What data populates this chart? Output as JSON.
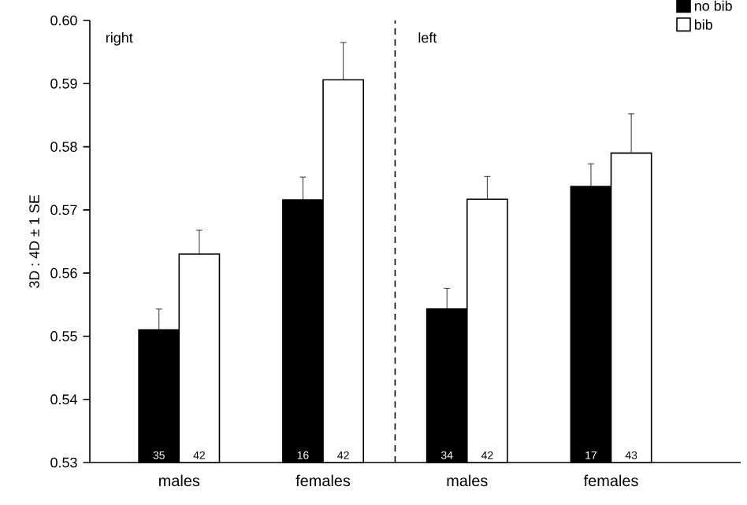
{
  "chart_data": {
    "type": "bar",
    "ylabel": "3D : 4D ± 1 SE",
    "categories": [
      "males",
      "females",
      "males",
      "females"
    ],
    "series": [
      {
        "name": "no bib",
        "color": "#000000",
        "values": [
          0.551,
          0.5716,
          0.5543,
          0.5737
        ],
        "errors": [
          [
            0.551,
            0.5543
          ],
          [
            0.5716,
            0.5752
          ],
          [
            0.5543,
            0.5576
          ],
          [
            0.5737,
            0.5773
          ]
        ]
      },
      {
        "name": "bib",
        "color": "#ffffff",
        "values": [
          0.563,
          0.5906,
          0.5717,
          0.579
        ],
        "errors": [
          [
            0.563,
            0.5668
          ],
          [
            0.5906,
            0.5965
          ],
          [
            0.5717,
            0.5753
          ],
          [
            0.579,
            0.5852
          ]
        ]
      }
    ],
    "ylim": [
      0.53,
      0.6
    ],
    "yticks": [
      0.53,
      0.54,
      0.55,
      0.56,
      0.57,
      0.58,
      0.59,
      {
        "value": 0.6,
        "label": "0.60"
      }
    ],
    "legend": "top right",
    "annotations": [
      "right",
      "left",
      "35",
      "42",
      "16",
      "42",
      "34",
      "42",
      "17",
      "43"
    ]
  }
}
